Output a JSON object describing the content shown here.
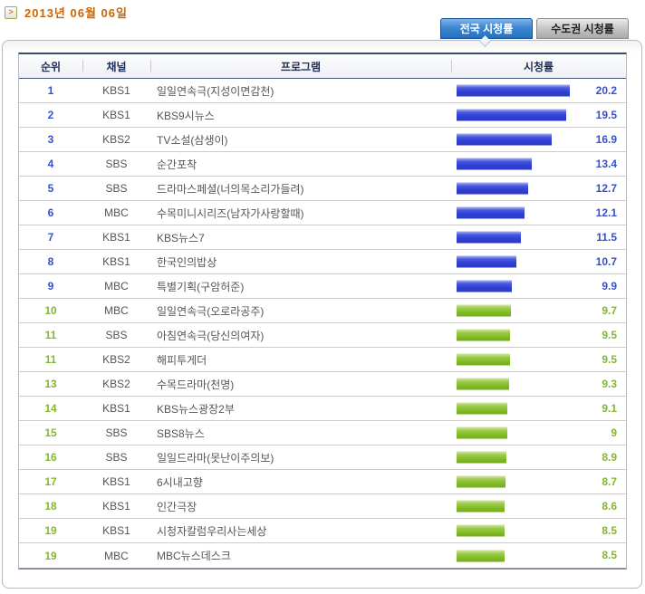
{
  "page": {
    "date_label": "2013년 06월 06일",
    "arrow_icon": ">"
  },
  "tabs": [
    {
      "label": "전국 시청률",
      "active": true
    },
    {
      "label": "수도권 시청률",
      "active": false
    }
  ],
  "colors": {
    "date_text": "#cc6600",
    "active_tab_blue": "#2272c2",
    "blue_rank_text": "#3651cf",
    "green_rank_text": "#84b82e",
    "blue_bar": "#3040d4",
    "green_bar": "#7fb923"
  },
  "table": {
    "columns": [
      "순위",
      "채널",
      "프로그램",
      "시청률"
    ],
    "max_rating_for_scale": 20.2,
    "rows": [
      {
        "rank": "1",
        "channel": "KBS1",
        "program": "일일연속극(지성이면감천)",
        "rating": "20.2",
        "group": "blue"
      },
      {
        "rank": "2",
        "channel": "KBS1",
        "program": "KBS9시뉴스",
        "rating": "19.5",
        "group": "blue"
      },
      {
        "rank": "3",
        "channel": "KBS2",
        "program": "TV소설(삼생이)",
        "rating": "16.9",
        "group": "blue"
      },
      {
        "rank": "4",
        "channel": "SBS",
        "program": "순간포착",
        "rating": "13.4",
        "group": "blue"
      },
      {
        "rank": "5",
        "channel": "SBS",
        "program": "드라마스페셜(너의목소리가들려)",
        "rating": "12.7",
        "group": "blue"
      },
      {
        "rank": "6",
        "channel": "MBC",
        "program": "수목미니시리즈(남자가사랑할때)",
        "rating": "12.1",
        "group": "blue"
      },
      {
        "rank": "7",
        "channel": "KBS1",
        "program": "KBS뉴스7",
        "rating": "11.5",
        "group": "blue"
      },
      {
        "rank": "8",
        "channel": "KBS1",
        "program": "한국인의밥상",
        "rating": "10.7",
        "group": "blue"
      },
      {
        "rank": "9",
        "channel": "MBC",
        "program": "특별기획(구암허준)",
        "rating": "9.9",
        "group": "blue"
      },
      {
        "rank": "10",
        "channel": "MBC",
        "program": "일일연속극(오로라공주)",
        "rating": "9.7",
        "group": "green"
      },
      {
        "rank": "11",
        "channel": "SBS",
        "program": "아침연속극(당신의여자)",
        "rating": "9.5",
        "group": "green"
      },
      {
        "rank": "11",
        "channel": "KBS2",
        "program": "해피투게더",
        "rating": "9.5",
        "group": "green"
      },
      {
        "rank": "13",
        "channel": "KBS2",
        "program": "수목드라마(천명)",
        "rating": "9.3",
        "group": "green"
      },
      {
        "rank": "14",
        "channel": "KBS1",
        "program": "KBS뉴스광장2부",
        "rating": "9.1",
        "group": "green"
      },
      {
        "rank": "15",
        "channel": "SBS",
        "program": "SBS8뉴스",
        "rating": "9",
        "group": "green"
      },
      {
        "rank": "16",
        "channel": "SBS",
        "program": "일일드라마(못난이주의보)",
        "rating": "8.9",
        "group": "green"
      },
      {
        "rank": "17",
        "channel": "KBS1",
        "program": "6시내고향",
        "rating": "8.7",
        "group": "green"
      },
      {
        "rank": "18",
        "channel": "KBS1",
        "program": "인간극장",
        "rating": "8.6",
        "group": "green"
      },
      {
        "rank": "19",
        "channel": "KBS1",
        "program": "시청자칼럼우리사는세상",
        "rating": "8.5",
        "group": "green"
      },
      {
        "rank": "19",
        "channel": "MBC",
        "program": "MBC뉴스데스크",
        "rating": "8.5",
        "group": "green"
      }
    ]
  }
}
